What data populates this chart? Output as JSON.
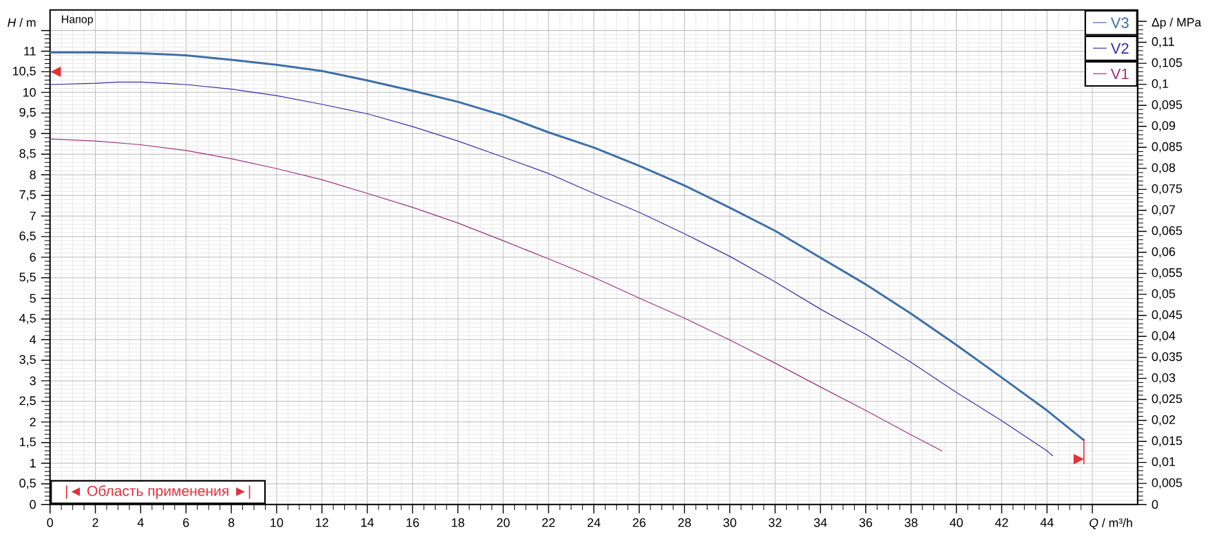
{
  "chart_data": {
    "type": "line",
    "title": "Напор",
    "xlabel": "*Q* / m³/h",
    "ylabel": "*H* / m",
    "y2label": "Δp / MPa",
    "annotations": [
      "|◄ Область применения ►|"
    ],
    "xlim": [
      0,
      48
    ],
    "ylim": [
      0,
      12
    ],
    "y2lim": [
      0,
      0.1177
    ],
    "xticks": [
      0,
      2,
      4,
      6,
      8,
      10,
      12,
      14,
      16,
      18,
      20,
      22,
      24,
      26,
      28,
      30,
      32,
      34,
      36,
      38,
      40,
      42,
      44,
      {
        "value": 46,
        "label": null
      }
    ],
    "yticks": [
      0,
      {
        "value": 0.5,
        "label": "0,5"
      },
      1,
      {
        "value": 1.5,
        "label": "1,5"
      },
      2,
      {
        "value": 2.5,
        "label": "2,5"
      },
      3,
      {
        "value": 3.5,
        "label": "3,5"
      },
      4,
      {
        "value": 4.5,
        "label": "4,5"
      },
      5,
      {
        "value": 5.5,
        "label": "5,5"
      },
      6,
      {
        "value": 6.5,
        "label": "6,5"
      },
      7,
      {
        "value": 7.5,
        "label": "7,5"
      },
      8,
      {
        "value": 8.5,
        "label": "8,5"
      },
      9,
      {
        "value": 9.5,
        "label": "9,5"
      },
      10,
      {
        "value": 10.5,
        "label": "10,5"
      },
      11,
      {
        "value": 11.5,
        "label": null
      }
    ],
    "y2ticks": [
      0,
      {
        "value": 0.005,
        "label": "0,005"
      },
      {
        "value": 0.01,
        "label": "0,01"
      },
      {
        "value": 0.015,
        "label": "0,015"
      },
      {
        "value": 0.02,
        "label": "0,02"
      },
      {
        "value": 0.025,
        "label": "0,025"
      },
      {
        "value": 0.03,
        "label": "0,03"
      },
      {
        "value": 0.035,
        "label": "0,035"
      },
      {
        "value": 0.04,
        "label": "0,04"
      },
      {
        "value": 0.045,
        "label": "0,045"
      },
      {
        "value": 0.05,
        "label": "0,05"
      },
      {
        "value": 0.055,
        "label": "0,055"
      },
      {
        "value": 0.06,
        "label": "0,06"
      },
      {
        "value": 0.065,
        "label": "0,065"
      },
      {
        "value": 0.07,
        "label": "0,07"
      },
      {
        "value": 0.075,
        "label": "0,075"
      },
      {
        "value": 0.08,
        "label": "0,08"
      },
      {
        "value": 0.085,
        "label": "0,085"
      },
      {
        "value": 0.09,
        "label": "0,09"
      },
      {
        "value": 0.095,
        "label": "0,095"
      },
      {
        "value": 0.1,
        "label": "0,1"
      },
      {
        "value": 0.105,
        "label": "0,105"
      },
      {
        "value": 0.11,
        "label": "0,11"
      },
      {
        "value": 0.115,
        "label": null
      }
    ],
    "grid": true,
    "legend": "top right",
    "line_style": "solid",
    "series": [
      {
        "name": "V3",
        "color": "#3d6fa8",
        "x": [
          0,
          2,
          4,
          6,
          8,
          10,
          12,
          14,
          16,
          18,
          20,
          22,
          24,
          26,
          28,
          30,
          32,
          34,
          36,
          38,
          40,
          42,
          44,
          45.6
        ],
        "values": [
          10.97,
          10.97,
          10.95,
          10.9,
          10.79,
          10.67,
          10.52,
          10.29,
          10.04,
          9.77,
          9.44,
          9.03,
          8.66,
          8.22,
          7.74,
          7.2,
          6.64,
          5.99,
          5.34,
          4.63,
          3.87,
          3.08,
          2.28,
          1.57
        ]
      },
      {
        "name": "V2",
        "color": "#3b2aa6",
        "x": [
          0,
          2,
          3,
          4,
          6,
          8,
          10,
          12,
          14,
          16,
          18,
          20,
          22,
          24,
          26,
          28,
          30,
          32,
          34,
          36,
          38,
          40,
          42,
          44,
          44.25
        ],
        "values": [
          10.19,
          10.22,
          10.25,
          10.25,
          10.19,
          10.08,
          9.92,
          9.71,
          9.48,
          9.17,
          8.82,
          8.43,
          8.03,
          7.55,
          7.09,
          6.57,
          6.02,
          5.4,
          4.74,
          4.13,
          3.45,
          2.72,
          2.03,
          1.3,
          1.18
        ]
      },
      {
        "name": "V1",
        "color": "#9c3080",
        "x": [
          0,
          2,
          4,
          6,
          8,
          10,
          12,
          14,
          16,
          18,
          20,
          22,
          24,
          26,
          28,
          30,
          32,
          34,
          36,
          38,
          39.35
        ],
        "values": [
          8.87,
          8.82,
          8.73,
          8.59,
          8.39,
          8.15,
          7.88,
          7.55,
          7.21,
          6.83,
          6.4,
          5.96,
          5.51,
          5.01,
          4.52,
          3.99,
          3.43,
          2.85,
          2.28,
          1.69,
          1.3
        ]
      },
      {
        "type": "scatter",
        "color": "#e0323a",
        "marker": "triangle",
        "x": [
          0.25,
          45.4
        ],
        "values": [
          10.5,
          1.1
        ]
      }
    ]
  }
}
